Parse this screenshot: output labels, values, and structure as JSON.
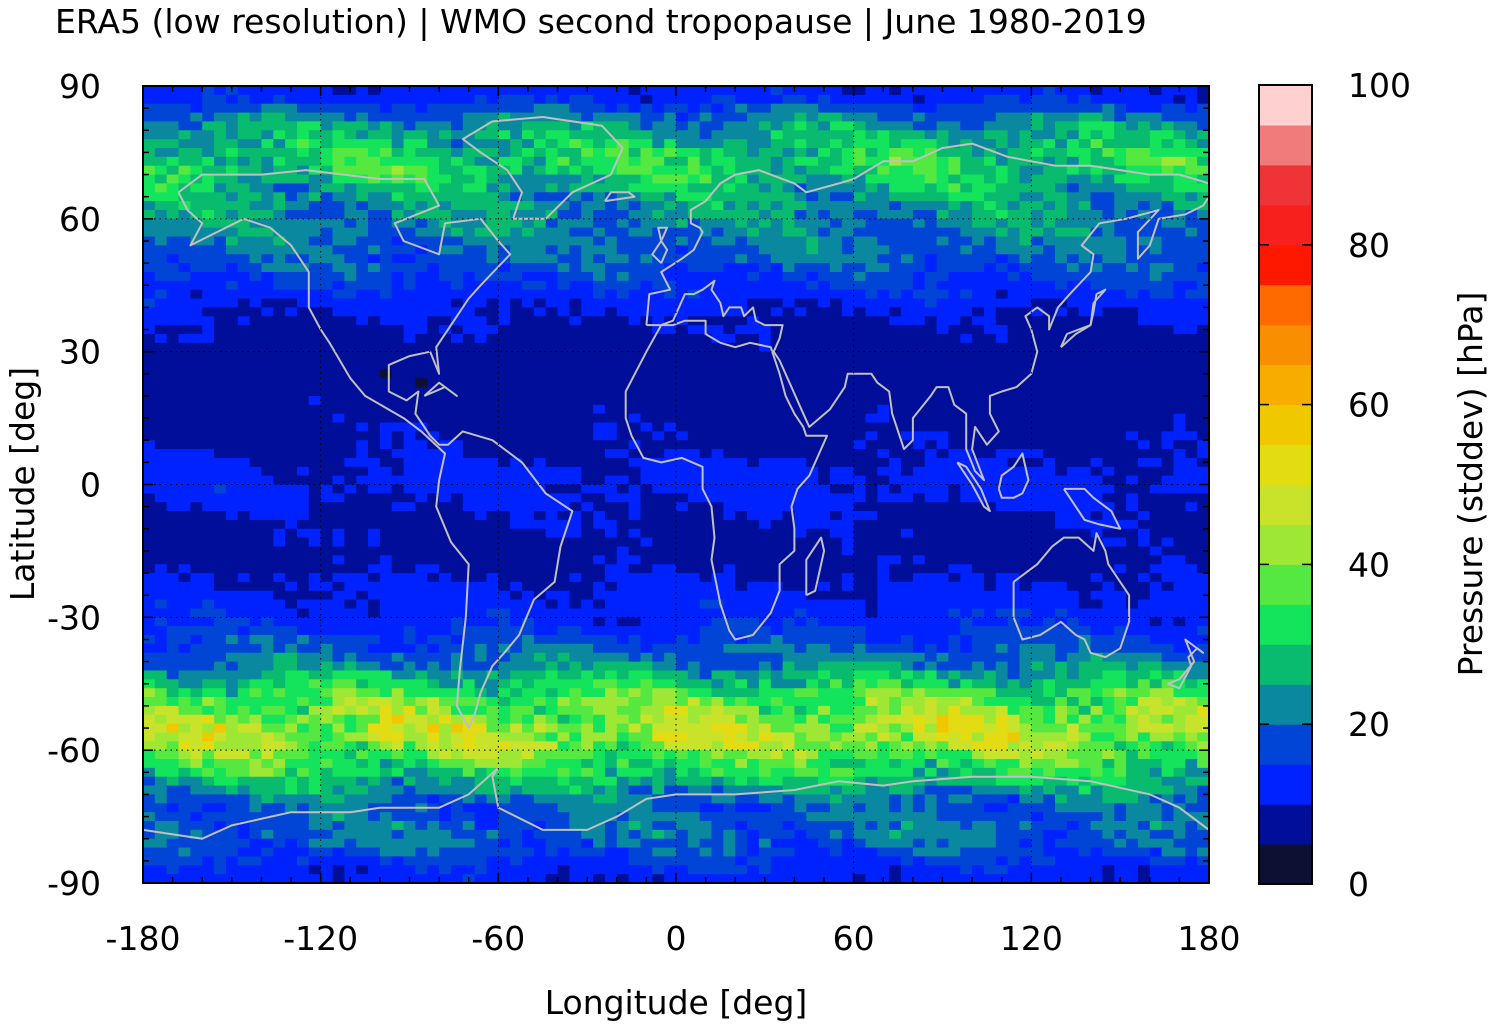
{
  "chart_data": {
    "type": "heatmap",
    "title": "ERA5 (low resolution) | WMO second tropopause | June 1980-2019",
    "xlabel": "Longitude [deg]",
    "ylabel": "Latitude [deg]",
    "colorbar_label": "Pressure (stddev) [hPa]",
    "xlim": [
      -180,
      180
    ],
    "ylim": [
      -90,
      90
    ],
    "clim": [
      0,
      100
    ],
    "xticks": [
      "-180",
      "-120",
      "-60",
      "0",
      "60",
      "120",
      "180"
    ],
    "yticks": [
      "90",
      "60",
      "30",
      "0",
      "-30",
      "-60",
      "-90"
    ],
    "cbar_ticks": [
      "100",
      "80",
      "60",
      "40",
      "20",
      "0"
    ],
    "grid": true,
    "colorbar_levels": [
      "#0d0f33",
      "#000e99",
      "#0022ff",
      "#0045d6",
      "#0a88a0",
      "#09bb6e",
      "#13e45b",
      "#55e840",
      "#9ee835",
      "#c9e32a",
      "#e4dc12",
      "#f0c800",
      "#f8ac00",
      "#f88e00",
      "#ff6a00",
      "#ff1800",
      "#f8201d",
      "#f03336",
      "#f07b7b",
      "#ffd0d0"
    ],
    "zonal_mean_stddev": [
      {
        "lat": 88,
        "value": 12
      },
      {
        "lat": 80,
        "value": 26
      },
      {
        "lat": 72,
        "value": 32
      },
      {
        "lat": 64,
        "value": 24
      },
      {
        "lat": 56,
        "value": 21
      },
      {
        "lat": 48,
        "value": 17
      },
      {
        "lat": 40,
        "value": 11
      },
      {
        "lat": 32,
        "value": 8
      },
      {
        "lat": 24,
        "value": 7
      },
      {
        "lat": 16,
        "value": 8
      },
      {
        "lat": 8,
        "value": 9
      },
      {
        "lat": 0,
        "value": 12
      },
      {
        "lat": -8,
        "value": 9
      },
      {
        "lat": -16,
        "value": 8
      },
      {
        "lat": -24,
        "value": 11
      },
      {
        "lat": -32,
        "value": 14
      },
      {
        "lat": -40,
        "value": 21
      },
      {
        "lat": -48,
        "value": 36
      },
      {
        "lat": -56,
        "value": 46
      },
      {
        "lat": -64,
        "value": 33
      },
      {
        "lat": -72,
        "value": 19
      },
      {
        "lat": -80,
        "value": 20
      },
      {
        "lat": -88,
        "value": 12
      }
    ],
    "coastline_color": "#c0c0c0"
  }
}
